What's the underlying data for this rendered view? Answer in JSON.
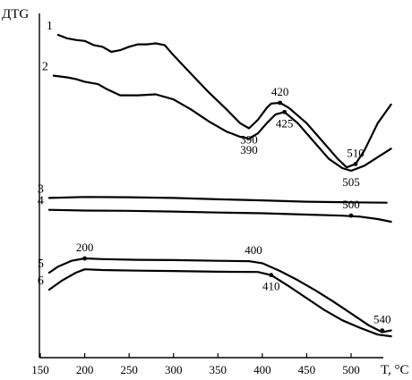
{
  "chart_data": {
    "type": "line",
    "ylabel": "ДТG",
    "xlabel": "T, °C",
    "xlim": [
      150,
      550
    ],
    "xticks": [
      150,
      200,
      250,
      300,
      350,
      400,
      450,
      500
    ],
    "grid": false,
    "series": [
      {
        "name": "1",
        "points": [
          [
            170,
            0.95
          ],
          [
            180,
            0.94
          ],
          [
            190,
            0.935
          ],
          [
            200,
            0.932
          ],
          [
            210,
            0.92
          ],
          [
            220,
            0.915
          ],
          [
            230,
            0.9
          ],
          [
            240,
            0.905
          ],
          [
            250,
            0.915
          ],
          [
            260,
            0.922
          ],
          [
            270,
            0.922
          ],
          [
            280,
            0.925
          ],
          [
            290,
            0.92
          ],
          [
            300,
            0.89
          ],
          [
            320,
            0.835
          ],
          [
            340,
            0.78
          ],
          [
            360,
            0.73
          ],
          [
            375,
            0.69
          ],
          [
            385,
            0.675
          ],
          [
            395,
            0.7
          ],
          [
            405,
            0.735
          ],
          [
            410,
            0.748
          ],
          [
            420,
            0.75
          ],
          [
            430,
            0.735
          ],
          [
            450,
            0.69
          ],
          [
            470,
            0.63
          ],
          [
            485,
            0.585
          ],
          [
            495,
            0.56
          ],
          [
            505,
            0.57
          ],
          [
            515,
            0.61
          ],
          [
            530,
            0.69
          ],
          [
            545,
            0.745
          ]
        ]
      },
      {
        "name": "2",
        "points": [
          [
            165,
            0.83
          ],
          [
            180,
            0.825
          ],
          [
            190,
            0.82
          ],
          [
            200,
            0.812
          ],
          [
            215,
            0.805
          ],
          [
            225,
            0.79
          ],
          [
            240,
            0.772
          ],
          [
            260,
            0.772
          ],
          [
            280,
            0.775
          ],
          [
            300,
            0.76
          ],
          [
            320,
            0.73
          ],
          [
            340,
            0.695
          ],
          [
            360,
            0.665
          ],
          [
            375,
            0.65
          ],
          [
            385,
            0.645
          ],
          [
            395,
            0.66
          ],
          [
            405,
            0.69
          ],
          [
            415,
            0.716
          ],
          [
            425,
            0.723
          ],
          [
            440,
            0.69
          ],
          [
            460,
            0.63
          ],
          [
            475,
            0.585
          ],
          [
            490,
            0.558
          ],
          [
            500,
            0.55
          ],
          [
            515,
            0.565
          ],
          [
            530,
            0.59
          ],
          [
            545,
            0.615
          ]
        ]
      },
      {
        "name": "3",
        "points": [
          [
            160,
            0.47
          ],
          [
            200,
            0.473
          ],
          [
            250,
            0.472
          ],
          [
            300,
            0.47
          ],
          [
            350,
            0.466
          ],
          [
            400,
            0.463
          ],
          [
            450,
            0.459
          ],
          [
            500,
            0.457
          ],
          [
            540,
            0.456
          ]
        ]
      },
      {
        "name": "4",
        "points": [
          [
            160,
            0.435
          ],
          [
            200,
            0.433
          ],
          [
            250,
            0.432
          ],
          [
            300,
            0.43
          ],
          [
            350,
            0.427
          ],
          [
            400,
            0.425
          ],
          [
            450,
            0.421
          ],
          [
            490,
            0.418
          ],
          [
            510,
            0.415
          ],
          [
            530,
            0.408
          ],
          [
            545,
            0.4
          ]
        ]
      },
      {
        "name": "5",
        "points": [
          [
            160,
            0.25
          ],
          [
            170,
            0.268
          ],
          [
            185,
            0.285
          ],
          [
            200,
            0.292
          ],
          [
            220,
            0.29
          ],
          [
            260,
            0.288
          ],
          [
            300,
            0.287
          ],
          [
            350,
            0.285
          ],
          [
            385,
            0.284
          ],
          [
            400,
            0.278
          ],
          [
            420,
            0.255
          ],
          [
            440,
            0.228
          ],
          [
            460,
            0.198
          ],
          [
            480,
            0.165
          ],
          [
            500,
            0.13
          ],
          [
            520,
            0.095
          ],
          [
            535,
            0.075
          ],
          [
            545,
            0.08
          ]
        ]
      },
      {
        "name": "6",
        "points": [
          [
            160,
            0.2
          ],
          [
            175,
            0.228
          ],
          [
            190,
            0.25
          ],
          [
            200,
            0.26
          ],
          [
            220,
            0.258
          ],
          [
            260,
            0.256
          ],
          [
            300,
            0.255
          ],
          [
            350,
            0.253
          ],
          [
            395,
            0.252
          ],
          [
            410,
            0.243
          ],
          [
            430,
            0.21
          ],
          [
            450,
            0.175
          ],
          [
            470,
            0.14
          ],
          [
            490,
            0.11
          ],
          [
            510,
            0.088
          ],
          [
            530,
            0.068
          ],
          [
            545,
            0.063
          ]
        ]
      }
    ],
    "annotations": [
      {
        "text": "420",
        "x": 420,
        "y": 0.75,
        "pos": "above",
        "marker": true
      },
      {
        "text": "390",
        "x": 385,
        "y": 0.675,
        "pos": "below",
        "marker": false
      },
      {
        "text": "425",
        "x": 425,
        "y": 0.723,
        "pos": "below",
        "marker": true
      },
      {
        "text": "390",
        "x": 385,
        "y": 0.645,
        "pos": "below",
        "marker": false
      },
      {
        "text": "510",
        "x": 505,
        "y": 0.57,
        "pos": "above",
        "marker": true
      },
      {
        "text": "505",
        "x": 500,
        "y": 0.55,
        "pos": "below",
        "marker": false
      },
      {
        "text": "500",
        "x": 500,
        "y": 0.418,
        "pos": "above",
        "marker": true
      },
      {
        "text": "200",
        "x": 200,
        "y": 0.292,
        "pos": "above",
        "marker": true
      },
      {
        "text": "400",
        "x": 390,
        "y": 0.284,
        "pos": "above",
        "marker": false
      },
      {
        "text": "410",
        "x": 410,
        "y": 0.243,
        "pos": "below",
        "marker": true
      },
      {
        "text": "540",
        "x": 535,
        "y": 0.08,
        "pos": "above",
        "marker": true
      }
    ]
  }
}
